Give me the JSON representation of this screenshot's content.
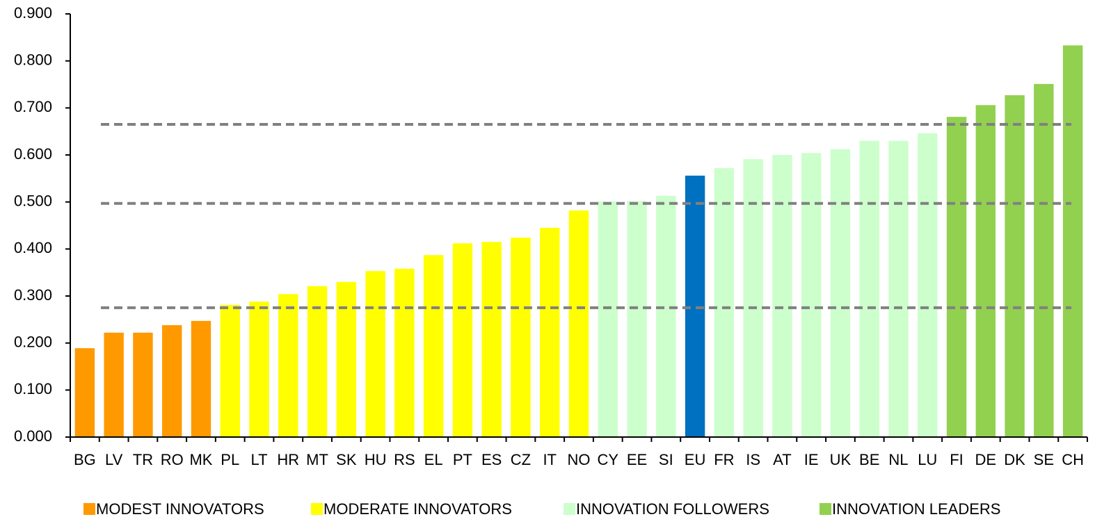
{
  "chart_data": {
    "type": "bar",
    "categories": [
      "BG",
      "LV",
      "TR",
      "RO",
      "MK",
      "PL",
      "LT",
      "HR",
      "MT",
      "SK",
      "HU",
      "RS",
      "EL",
      "PT",
      "ES",
      "CZ",
      "IT",
      "NO",
      "CY",
      "EE",
      "SI",
      "EU",
      "FR",
      "IS",
      "AT",
      "IE",
      "UK",
      "BE",
      "NL",
      "LU",
      "FI",
      "DE",
      "DK",
      "SE",
      "CH"
    ],
    "values": [
      0.189,
      0.222,
      0.222,
      0.238,
      0.247,
      0.281,
      0.288,
      0.304,
      0.321,
      0.33,
      0.353,
      0.358,
      0.387,
      0.412,
      0.415,
      0.424,
      0.445,
      0.482,
      0.501,
      0.502,
      0.513,
      0.556,
      0.572,
      0.591,
      0.6,
      0.604,
      0.612,
      0.63,
      0.63,
      0.646,
      0.681,
      0.706,
      0.727,
      0.751,
      0.833
    ],
    "colors": [
      "#ff9900",
      "#ff9900",
      "#ff9900",
      "#ff9900",
      "#ff9900",
      "#ffff00",
      "#ffff00",
      "#ffff00",
      "#ffff00",
      "#ffff00",
      "#ffff00",
      "#ffff00",
      "#ffff00",
      "#ffff00",
      "#ffff00",
      "#ffff00",
      "#ffff00",
      "#ffff00",
      "#ccffcc",
      "#ccffcc",
      "#ccffcc",
      "#0070c0",
      "#ccffcc",
      "#ccffcc",
      "#ccffcc",
      "#ccffcc",
      "#ccffcc",
      "#ccffcc",
      "#ccffcc",
      "#ccffcc",
      "#92d050",
      "#92d050",
      "#92d050",
      "#92d050",
      "#92d050"
    ],
    "legend": [
      {
        "name": "MODEST INNOVATORS",
        "color": "#ff9900"
      },
      {
        "name": "MODERATE INNOVATORS",
        "color": "#ffff00"
      },
      {
        "name": "INNOVATION FOLLOWERS",
        "color": "#ccffcc"
      },
      {
        "name": "INNOVATION LEADERS",
        "color": "#92d050"
      }
    ],
    "reference_lines": [
      0.275,
      0.497,
      0.665
    ],
    "ylim": [
      0,
      0.9
    ],
    "yticks": [
      {
        "value": 0,
        "label": "0.000"
      },
      {
        "value": 0.1,
        "label": "0.100"
      },
      {
        "value": 0.2,
        "label": "0.200"
      },
      {
        "value": 0.3,
        "label": "0.300"
      },
      {
        "value": 0.4,
        "label": "0.400"
      },
      {
        "value": 0.5,
        "label": "0.500"
      },
      {
        "value": 0.6,
        "label": "0.600"
      },
      {
        "value": 0.7,
        "label": "0.700"
      },
      {
        "value": 0.8,
        "label": "0.800"
      },
      {
        "value": 0.9,
        "label": "0.900"
      }
    ],
    "grid": false
  }
}
